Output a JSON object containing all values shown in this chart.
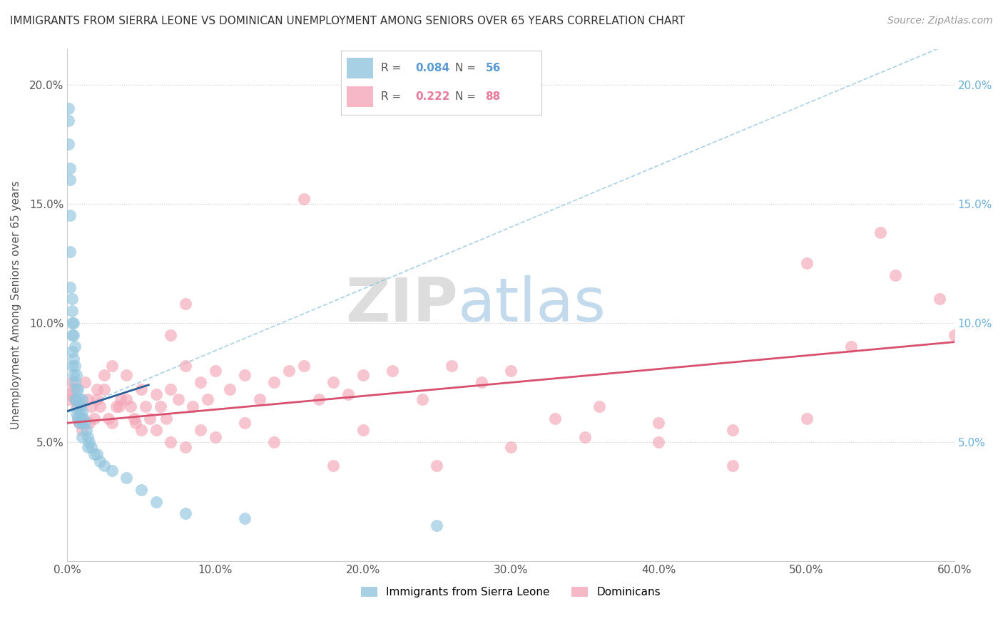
{
  "title": "IMMIGRANTS FROM SIERRA LEONE VS DOMINICAN UNEMPLOYMENT AMONG SENIORS OVER 65 YEARS CORRELATION CHART",
  "source": "Source: ZipAtlas.com",
  "ylabel": "Unemployment Among Seniors over 65 years",
  "xlabel": "",
  "xlim": [
    0.0,
    0.6
  ],
  "ylim": [
    0.0,
    0.215
  ],
  "xticks": [
    0.0,
    0.1,
    0.2,
    0.3,
    0.4,
    0.5,
    0.6
  ],
  "yticks": [
    0.0,
    0.05,
    0.1,
    0.15,
    0.2
  ],
  "xtick_labels": [
    "0.0%",
    "10.0%",
    "20.0%",
    "30.0%",
    "40.0%",
    "50.0%",
    "60.0%"
  ],
  "ytick_labels": [
    "",
    "5.0%",
    "10.0%",
    "15.0%",
    "20.0%"
  ],
  "R_blue": 0.084,
  "N_blue": 56,
  "R_pink": 0.222,
  "N_pink": 88,
  "blue_color": "#92c5de",
  "pink_color": "#f4a6b8",
  "blue_label": "Immigrants from Sierra Leone",
  "pink_label": "Dominicans",
  "watermark_zip": "ZIP",
  "watermark_atlas": "atlas",
  "blue_regression_start_x": 0.0,
  "blue_regression_start_y": 0.063,
  "blue_regression_end_x": 0.05,
  "blue_regression_end_y": 0.073,
  "pink_regression_start_x": 0.0,
  "pink_regression_start_y": 0.058,
  "pink_regression_end_x": 0.6,
  "pink_regression_end_y": 0.092,
  "blue_scatter_x": [
    0.001,
    0.001,
    0.001,
    0.002,
    0.002,
    0.002,
    0.002,
    0.002,
    0.003,
    0.003,
    0.003,
    0.003,
    0.003,
    0.003,
    0.004,
    0.004,
    0.004,
    0.004,
    0.005,
    0.005,
    0.005,
    0.005,
    0.006,
    0.006,
    0.006,
    0.006,
    0.007,
    0.007,
    0.007,
    0.008,
    0.008,
    0.008,
    0.009,
    0.009,
    0.01,
    0.01,
    0.01,
    0.01,
    0.011,
    0.012,
    0.013,
    0.014,
    0.014,
    0.015,
    0.016,
    0.018,
    0.02,
    0.022,
    0.025,
    0.03,
    0.04,
    0.05,
    0.06,
    0.08,
    0.12,
    0.25
  ],
  "blue_scatter_y": [
    0.19,
    0.185,
    0.175,
    0.165,
    0.16,
    0.145,
    0.13,
    0.115,
    0.11,
    0.105,
    0.1,
    0.095,
    0.088,
    0.082,
    0.1,
    0.095,
    0.085,
    0.078,
    0.09,
    0.082,
    0.075,
    0.068,
    0.078,
    0.072,
    0.068,
    0.062,
    0.072,
    0.065,
    0.06,
    0.068,
    0.063,
    0.058,
    0.065,
    0.06,
    0.068,
    0.063,
    0.058,
    0.052,
    0.06,
    0.058,
    0.055,
    0.052,
    0.048,
    0.05,
    0.048,
    0.045,
    0.045,
    0.042,
    0.04,
    0.038,
    0.035,
    0.03,
    0.025,
    0.02,
    0.018,
    0.015
  ],
  "pink_scatter_x": [
    0.001,
    0.002,
    0.003,
    0.004,
    0.005,
    0.006,
    0.007,
    0.008,
    0.01,
    0.012,
    0.014,
    0.016,
    0.018,
    0.02,
    0.022,
    0.025,
    0.028,
    0.03,
    0.033,
    0.036,
    0.04,
    0.043,
    0.046,
    0.05,
    0.053,
    0.056,
    0.06,
    0.063,
    0.067,
    0.07,
    0.075,
    0.08,
    0.085,
    0.09,
    0.095,
    0.1,
    0.11,
    0.12,
    0.13,
    0.14,
    0.15,
    0.16,
    0.17,
    0.18,
    0.19,
    0.2,
    0.22,
    0.24,
    0.26,
    0.28,
    0.3,
    0.33,
    0.36,
    0.4,
    0.45,
    0.5,
    0.53,
    0.56,
    0.59,
    0.6,
    0.01,
    0.015,
    0.02,
    0.025,
    0.03,
    0.035,
    0.04,
    0.045,
    0.05,
    0.06,
    0.07,
    0.08,
    0.09,
    0.1,
    0.12,
    0.14,
    0.16,
    0.18,
    0.2,
    0.25,
    0.3,
    0.35,
    0.4,
    0.45,
    0.5,
    0.55,
    0.07,
    0.08
  ],
  "pink_scatter_y": [
    0.068,
    0.07,
    0.075,
    0.072,
    0.068,
    0.065,
    0.06,
    0.058,
    0.055,
    0.075,
    0.068,
    0.065,
    0.06,
    0.072,
    0.065,
    0.078,
    0.06,
    0.082,
    0.065,
    0.068,
    0.078,
    0.065,
    0.058,
    0.072,
    0.065,
    0.06,
    0.07,
    0.065,
    0.06,
    0.072,
    0.068,
    0.082,
    0.065,
    0.075,
    0.068,
    0.08,
    0.072,
    0.078,
    0.068,
    0.075,
    0.08,
    0.082,
    0.068,
    0.075,
    0.07,
    0.078,
    0.08,
    0.068,
    0.082,
    0.075,
    0.08,
    0.06,
    0.065,
    0.05,
    0.055,
    0.06,
    0.09,
    0.12,
    0.11,
    0.095,
    0.06,
    0.058,
    0.068,
    0.072,
    0.058,
    0.065,
    0.068,
    0.06,
    0.055,
    0.055,
    0.05,
    0.048,
    0.055,
    0.052,
    0.058,
    0.05,
    0.152,
    0.04,
    0.055,
    0.04,
    0.048,
    0.052,
    0.058,
    0.04,
    0.125,
    0.138,
    0.095,
    0.108
  ]
}
